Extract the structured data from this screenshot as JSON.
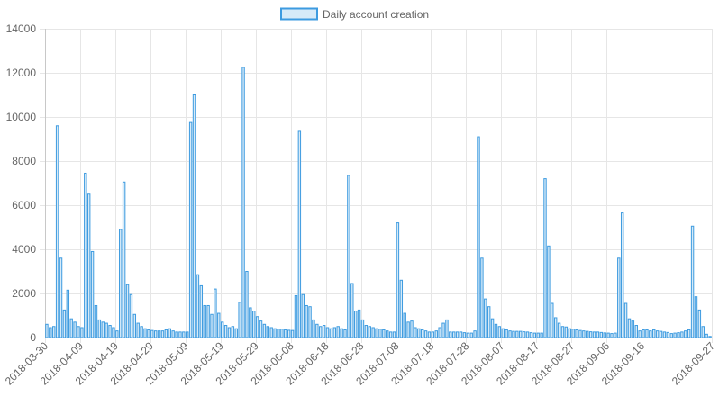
{
  "chart_data": {
    "type": "bar",
    "legend": {
      "label": "Daily account creation",
      "position": "top"
    },
    "colors": {
      "bar_fill": "#d6eaf8",
      "bar_stroke": "#3d9be0",
      "grid": "#e6e6e6",
      "text": "#666666"
    },
    "ylim": [
      0,
      14000
    ],
    "y_ticks": [
      "0",
      "2000",
      "4000",
      "6000",
      "8000",
      "10000",
      "12000",
      "14000"
    ],
    "x_start": "2018-03-30",
    "x_tick_labels": [
      "2018-03-30",
      "2018-04-09",
      "2018-04-19",
      "2018-04-29",
      "2018-05-09",
      "2018-05-19",
      "2018-05-29",
      "2018-06-08",
      "2018-06-18",
      "2018-06-28",
      "2018-07-08",
      "2018-07-18",
      "2018-07-28",
      "2018-08-07",
      "2018-08-17",
      "2018-08-27",
      "2018-09-06",
      "2018-09-16",
      "2018-09-27"
    ],
    "grid": true,
    "values": [
      600,
      450,
      500,
      9600,
      3600,
      1250,
      2150,
      850,
      700,
      500,
      450,
      7450,
      6500,
      3900,
      1450,
      800,
      700,
      650,
      550,
      450,
      300,
      4900,
      7050,
      2400,
      1950,
      1050,
      650,
      500,
      400,
      350,
      320,
      300,
      300,
      300,
      350,
      400,
      300,
      250,
      250,
      250,
      250,
      9750,
      11000,
      2850,
      2350,
      1450,
      1450,
      1050,
      2200,
      1100,
      700,
      550,
      450,
      500,
      400,
      1600,
      12250,
      3000,
      1350,
      1200,
      950,
      750,
      600,
      500,
      450,
      400,
      380,
      380,
      350,
      330,
      320,
      1900,
      9350,
      1950,
      1450,
      1400,
      800,
      600,
      500,
      550,
      450,
      400,
      450,
      500,
      400,
      350,
      7350,
      2450,
      1200,
      1250,
      800,
      550,
      500,
      450,
      400,
      380,
      350,
      300,
      250,
      250,
      5200,
      2600,
      1100,
      700,
      750,
      450,
      400,
      350,
      300,
      250,
      250,
      300,
      450,
      650,
      800,
      250,
      250,
      250,
      250,
      220,
      200,
      200,
      300,
      9100,
      3600,
      1750,
      1400,
      850,
      600,
      500,
      400,
      350,
      300,
      280,
      280,
      280,
      260,
      250,
      220,
      200,
      200,
      200,
      7200,
      4150,
      1550,
      900,
      650,
      500,
      480,
      400,
      380,
      350,
      320,
      300,
      280,
      260,
      250,
      250,
      230,
      210,
      200,
      180,
      200,
      3600,
      5650,
      1550,
      850,
      750,
      550,
      300,
      350,
      350,
      300,
      350,
      300,
      280,
      250,
      230,
      180,
      200,
      220,
      250,
      300,
      350,
      5050,
      1850,
      1250,
      500,
      150,
      50
    ]
  }
}
